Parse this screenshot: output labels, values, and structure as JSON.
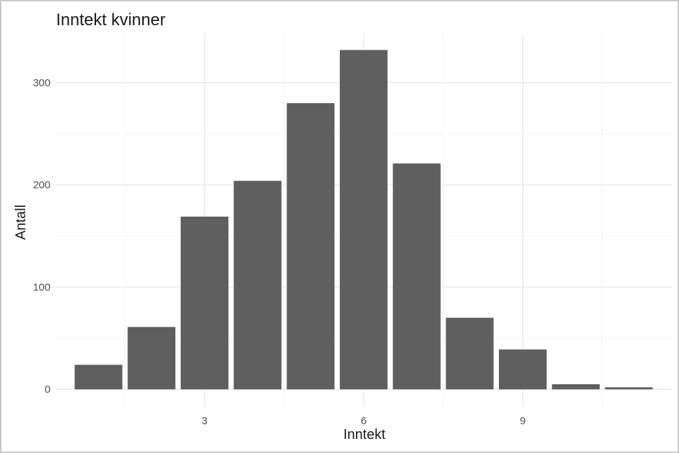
{
  "chart_data": {
    "type": "bar",
    "title": "Inntekt kvinner",
    "xlabel": "Inntekt",
    "ylabel": "Antall",
    "x": [
      1,
      2,
      3,
      4,
      5,
      6,
      7,
      8,
      9,
      10,
      11
    ],
    "values": [
      24,
      61,
      169,
      204,
      280,
      332,
      221,
      70,
      39,
      5,
      2
    ],
    "xlim": [
      0.2,
      11.8
    ],
    "ylim": [
      -17,
      348
    ],
    "x_ticks": [
      3,
      6,
      9
    ],
    "x_tick_labels": [
      "3",
      "6",
      "9"
    ],
    "y_ticks": [
      0,
      100,
      200,
      300
    ],
    "y_tick_labels": [
      "0",
      "100",
      "200",
      "300"
    ],
    "grid": true,
    "legend": "none",
    "colors": {
      "bar": "#5f5f5f",
      "background": "#ffffff",
      "grid": "#ebebeb"
    }
  }
}
